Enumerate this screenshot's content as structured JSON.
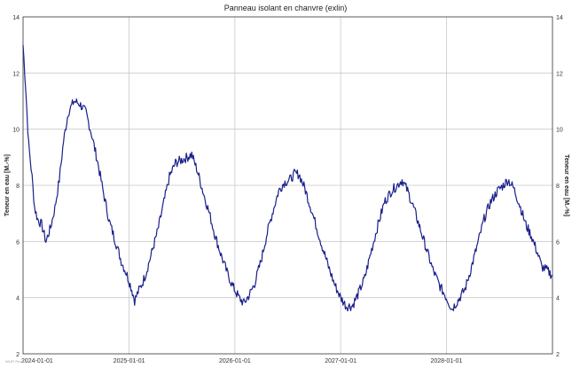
{
  "chart_data": {
    "type": "line",
    "title": "Panneau isolant en chanvre (exlin)",
    "ylabel_left": "Teneur en eau [M.-%]",
    "ylabel_right": "Teneur en eau [M.-%]",
    "xlabel": "",
    "ylim": [
      2,
      14
    ],
    "yticks": [
      2,
      4,
      6,
      8,
      10,
      12,
      14
    ],
    "xlim": [
      "2024-01-01",
      "2029-01-01"
    ],
    "xticks": [
      "2024-01-01",
      "2025-01-01",
      "2026-01-01",
      "2027-01-01",
      "2028-01-01"
    ],
    "grid": true,
    "series": [
      {
        "color": "#1a1f8a",
        "points": [
          [
            "2024-01-01",
            13.0
          ],
          [
            "2024-01-10",
            11.5
          ],
          [
            "2024-01-20",
            9.5
          ],
          [
            "2024-02-01",
            8.3
          ],
          [
            "2024-02-10",
            7.2
          ],
          [
            "2024-02-20",
            6.8
          ],
          [
            "2024-03-05",
            6.6
          ],
          [
            "2024-03-20",
            6.0
          ],
          [
            "2024-04-05",
            6.5
          ],
          [
            "2024-04-20",
            7.2
          ],
          [
            "2024-05-05",
            8.2
          ],
          [
            "2024-05-20",
            9.6
          ],
          [
            "2024-06-05",
            10.6
          ],
          [
            "2024-06-25",
            11.0
          ],
          [
            "2024-07-15",
            10.9
          ],
          [
            "2024-08-05",
            10.6
          ],
          [
            "2024-08-25",
            9.8
          ],
          [
            "2024-09-15",
            8.8
          ],
          [
            "2024-10-05",
            7.7
          ],
          [
            "2024-10-25",
            6.7
          ],
          [
            "2024-11-15",
            6.0
          ],
          [
            "2024-12-05",
            5.3
          ],
          [
            "2024-12-25",
            4.8
          ],
          [
            "2025-01-10",
            4.3
          ],
          [
            "2025-01-20",
            3.9
          ],
          [
            "2025-02-01",
            4.2
          ],
          [
            "2025-02-15",
            4.5
          ],
          [
            "2025-03-01",
            4.9
          ],
          [
            "2025-03-20",
            5.6
          ],
          [
            "2025-04-10",
            6.4
          ],
          [
            "2025-05-01",
            7.4
          ],
          [
            "2025-05-20",
            8.3
          ],
          [
            "2025-06-10",
            8.8
          ],
          [
            "2025-07-01",
            8.9
          ],
          [
            "2025-07-20",
            9.0
          ],
          [
            "2025-08-05",
            9.1
          ],
          [
            "2025-08-25",
            8.5
          ],
          [
            "2025-09-15",
            7.7
          ],
          [
            "2025-10-05",
            7.0
          ],
          [
            "2025-10-25",
            6.2
          ],
          [
            "2025-11-15",
            5.5
          ],
          [
            "2025-12-05",
            4.9
          ],
          [
            "2025-12-25",
            4.4
          ],
          [
            "2026-01-15",
            4.0
          ],
          [
            "2026-02-01",
            3.8
          ],
          [
            "2026-02-20",
            4.1
          ],
          [
            "2026-03-10",
            4.5
          ],
          [
            "2026-04-01",
            5.3
          ],
          [
            "2026-04-20",
            6.2
          ],
          [
            "2026-05-10",
            7.0
          ],
          [
            "2026-06-01",
            7.8
          ],
          [
            "2026-06-20",
            8.1
          ],
          [
            "2026-07-10",
            8.2
          ],
          [
            "2026-07-25",
            8.4
          ],
          [
            "2026-08-10",
            8.4
          ],
          [
            "2026-08-30",
            7.9
          ],
          [
            "2026-09-20",
            7.2
          ],
          [
            "2026-10-10",
            6.5
          ],
          [
            "2026-10-30",
            5.8
          ],
          [
            "2026-11-20",
            5.1
          ],
          [
            "2026-12-10",
            4.5
          ],
          [
            "2027-01-01",
            4.0
          ],
          [
            "2027-01-20",
            3.7
          ],
          [
            "2027-02-10",
            3.7
          ],
          [
            "2027-03-01",
            4.1
          ],
          [
            "2027-03-25",
            4.7
          ],
          [
            "2027-04-15",
            5.6
          ],
          [
            "2027-05-10",
            6.6
          ],
          [
            "2027-06-01",
            7.4
          ],
          [
            "2027-06-25",
            7.8
          ],
          [
            "2027-07-15",
            8.0
          ],
          [
            "2027-08-01",
            8.2
          ],
          [
            "2027-08-20",
            7.8
          ],
          [
            "2027-09-10",
            7.2
          ],
          [
            "2027-10-01",
            6.5
          ],
          [
            "2027-10-25",
            5.7
          ],
          [
            "2027-11-15",
            5.0
          ],
          [
            "2027-12-10",
            4.4
          ],
          [
            "2028-01-01",
            4.0
          ],
          [
            "2028-01-20",
            3.6
          ],
          [
            "2028-02-10",
            3.9
          ],
          [
            "2028-03-05",
            4.3
          ],
          [
            "2028-03-25",
            5.0
          ],
          [
            "2028-04-15",
            5.8
          ],
          [
            "2028-05-10",
            6.8
          ],
          [
            "2028-06-01",
            7.4
          ],
          [
            "2028-06-25",
            7.8
          ],
          [
            "2028-07-15",
            8.0
          ],
          [
            "2028-08-01",
            8.2
          ],
          [
            "2028-08-20",
            7.9
          ],
          [
            "2028-09-10",
            7.3
          ],
          [
            "2028-10-01",
            6.6
          ],
          [
            "2028-10-20",
            6.2
          ],
          [
            "2028-11-10",
            5.6
          ],
          [
            "2028-11-25",
            5.1
          ],
          [
            "2028-12-10",
            5.0
          ],
          [
            "2028-12-31",
            4.8
          ]
        ]
      }
    ]
  },
  "footer_note": "WUFI Pro 6.7 ..."
}
